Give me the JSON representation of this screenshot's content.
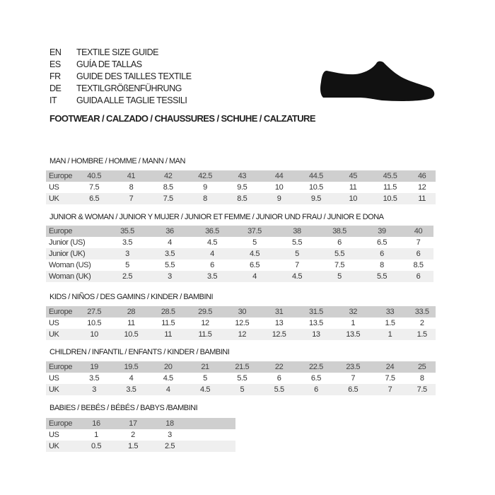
{
  "languages": [
    {
      "code": "EN",
      "title": "TEXTILE SIZE GUIDE"
    },
    {
      "code": "ES",
      "title": "GUÍA DE TALLAS"
    },
    {
      "code": "FR",
      "title": "GUIDE DES TAILLES TEXTILE"
    },
    {
      "code": "DE",
      "title": "TEXTILGRÖßENFÜHRUNG"
    },
    {
      "code": "IT",
      "title": "GUIDA ALLE TAGLIE TESSILI"
    }
  ],
  "footwear_title": "FOOTWEAR / CALZADO / CHAUSSURES / SCHUHE / CALZATURE",
  "shoe_icon": "shoe-icon",
  "colors": {
    "header_row": "#cfcfcf",
    "alt_row": "#efefef"
  },
  "sections": [
    {
      "title": "MAN / HOMBRE / HOMME / MANN / MAN",
      "rows": [
        {
          "label": "Europe",
          "values": [
            "40.5",
            "41",
            "42",
            "42.5",
            "43",
            "44",
            "44.5",
            "45",
            "45.5",
            "46"
          ]
        },
        {
          "label": "US",
          "values": [
            "7.5",
            "8",
            "8.5",
            "9",
            "9.5",
            "10",
            "10.5",
            "11",
            "11.5",
            "12"
          ]
        },
        {
          "label": "UK",
          "values": [
            "6.5",
            "7",
            "7.5",
            "8",
            "8.5",
            "9",
            "9.5",
            "10",
            "10.5",
            "11"
          ]
        }
      ]
    },
    {
      "title": "JUNIOR & WOMAN / JUNIOR Y MUJER / JUNIOR ET FEMME / JUNIOR UND FRAU / JUNIOR E DONA",
      "rows": [
        {
          "label": "Europe",
          "values": [
            "35.5",
            "36",
            "36.5",
            "37.5",
            "38",
            "38.5",
            "39",
            "40"
          ]
        },
        {
          "label": "Junior (US)",
          "values": [
            "3.5",
            "4",
            "4.5",
            "5",
            "5.5",
            "6",
            "6.5",
            "7"
          ]
        },
        {
          "label": "Junior (UK)",
          "values": [
            "3",
            "3.5",
            "4",
            "4.5",
            "5",
            "5.5",
            "6",
            "6"
          ]
        },
        {
          "label": "Woman (US)",
          "values": [
            "5",
            "5.5",
            "6",
            "6.5",
            "7",
            "7.5",
            "8",
            "8.5"
          ]
        },
        {
          "label": "Woman (UK)",
          "values": [
            "2.5",
            "3",
            "3.5",
            "4",
            "4.5",
            "5",
            "5.5",
            "6"
          ]
        }
      ]
    },
    {
      "title": "KIDS / NIÑOS / DES GAMINS / KINDER / BAMBINI",
      "rows": [
        {
          "label": "Europe",
          "values": [
            "27.5",
            "28",
            "28.5",
            "29.5",
            "30",
            "31",
            "31.5",
            "32",
            "33",
            "33.5"
          ]
        },
        {
          "label": "US",
          "values": [
            "10.5",
            "11",
            "11.5",
            "12",
            "12.5",
            "13",
            "13.5",
            "1",
            "1.5",
            "2"
          ]
        },
        {
          "label": "UK",
          "values": [
            "10",
            "10.5",
            "11",
            "11.5",
            "12",
            "12.5",
            "13",
            "13.5",
            "1",
            "1.5"
          ]
        }
      ]
    },
    {
      "title": "CHILDREN / INFANTIL / ENFANTS / KINDER / BAMBINI",
      "rows": [
        {
          "label": "Europe",
          "values": [
            "19",
            "19.5",
            "20",
            "21",
            "21.5",
            "22",
            "22.5",
            "23.5",
            "24",
            "25"
          ]
        },
        {
          "label": "US",
          "values": [
            "3.5",
            "4",
            "4.5",
            "5",
            "5.5",
            "6",
            "6.5",
            "7",
            "7.5",
            "8"
          ]
        },
        {
          "label": "UK",
          "values": [
            "3",
            "3.5",
            "4",
            "4.5",
            "5",
            "5.5",
            "6",
            "6.5",
            "7",
            "7.5"
          ]
        }
      ]
    },
    {
      "title": "BABIES  / BEBÉS / BÉBÉS / BABYS /BAMBINI",
      "rows": [
        {
          "label": "Europe",
          "values": [
            "16",
            "17",
            "18"
          ]
        },
        {
          "label": "US",
          "values": [
            "1",
            "2",
            "3"
          ]
        },
        {
          "label": "UK",
          "values": [
            "0.5",
            "1.5",
            "2.5"
          ]
        }
      ]
    }
  ]
}
